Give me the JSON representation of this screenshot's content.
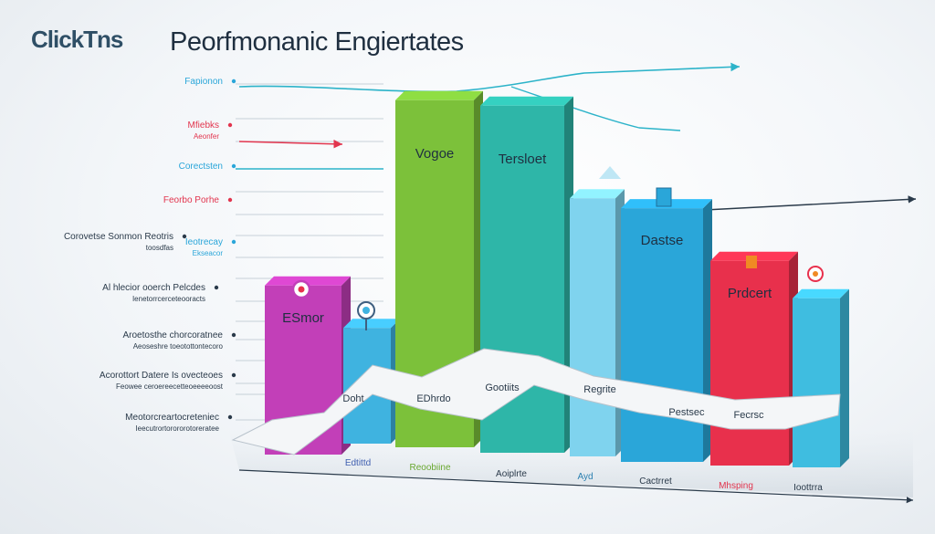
{
  "brand": {
    "logo_text": "ClickTns"
  },
  "header": {
    "title": "Peorfmonanic Engiertates"
  },
  "colors": {
    "lime": "#7cc13a",
    "teal": "#2eb6a8",
    "light_blue": "#7fd3ee",
    "blue": "#2aa6d9",
    "red": "#e8304c",
    "magenta": "#b33fbf",
    "purple": "#5a4fb3",
    "cyan": "#3fbde0",
    "arrow_teal": "#2cb3c9",
    "arrow_red": "#e2354e",
    "axis_dark": "#2a3a4a"
  },
  "icons": [
    "magnifier-icon",
    "bell-icon",
    "target-icon",
    "flag-icon"
  ],
  "chart_data": {
    "type": "bar",
    "title": "Peorfmonanic Engiertates",
    "bar_labels": [
      "ESmor",
      "Vogoe",
      "Tersloet",
      "Dastse",
      "Prdcert"
    ],
    "categories": [
      "",
      "Edtittd",
      "Reoobiine",
      "Aoiplrte",
      "Ayd",
      "Cactrret",
      "Mhsping",
      "Ioottrra"
    ],
    "bars": [
      {
        "value": 38,
        "color": "#c23fb8",
        "label": "ESmor"
      },
      {
        "value": 26,
        "color": "#3fb3e0"
      },
      {
        "value": 78,
        "color": "#7cc13a",
        "label": "Vogoe"
      },
      {
        "value": 78,
        "color": "#2eb6a8",
        "label": "Tersloet"
      },
      {
        "value": 58,
        "color": "#7fd3ee"
      },
      {
        "value": 57,
        "color": "#2aa6d9",
        "label": "Dastse"
      },
      {
        "value": 46,
        "color": "#e8304c",
        "label": "Prdcert"
      },
      {
        "value": 38,
        "color": "#3fbde0"
      }
    ],
    "ribbon_labels": [
      "Doht",
      "EDhrdo",
      "Gootiits",
      "Regrite",
      "Pestsec",
      "Fecrsc"
    ],
    "left_labels": [
      {
        "lines": [
          "Fapionon"
        ],
        "color": "#2aa6d9"
      },
      {
        "lines": [
          "Mfiebks",
          "Aeonfer"
        ],
        "color": "#e2354e"
      },
      {
        "lines": [
          "Corectsten"
        ],
        "color": "#2aa6d9"
      },
      {
        "lines": [
          "Feorbo Porhe"
        ],
        "color": "#e2354e"
      },
      {
        "lines": [
          "Corovetse Sonmon Reotris",
          "toosdfas"
        ],
        "color": "#2a3a4a"
      },
      {
        "lines": [
          "Ieotrecay",
          "Ekseacor"
        ],
        "color": "#2aa6d9"
      },
      {
        "lines": [
          "Al hlecior  ooerch Pelcdes",
          "Ienetorrcerceteooracts"
        ],
        "color": "#2a3a4a"
      },
      {
        "lines": [
          "Aroetosthe chorcoratnee",
          "Aeoseshre toeotottontecoro"
        ],
        "color": "#2a3a4a"
      },
      {
        "lines": [
          "Acorottort Datere Is ovecteoes",
          "Feowee ceroereecetteoeeeeoost"
        ],
        "color": "#2a3a4a"
      },
      {
        "lines": [
          "Meotorcreartocreteniec",
          "Ieecutrortorororotoreratee"
        ],
        "color": "#2a3a4a"
      }
    ],
    "grid": true,
    "legend": "none"
  }
}
